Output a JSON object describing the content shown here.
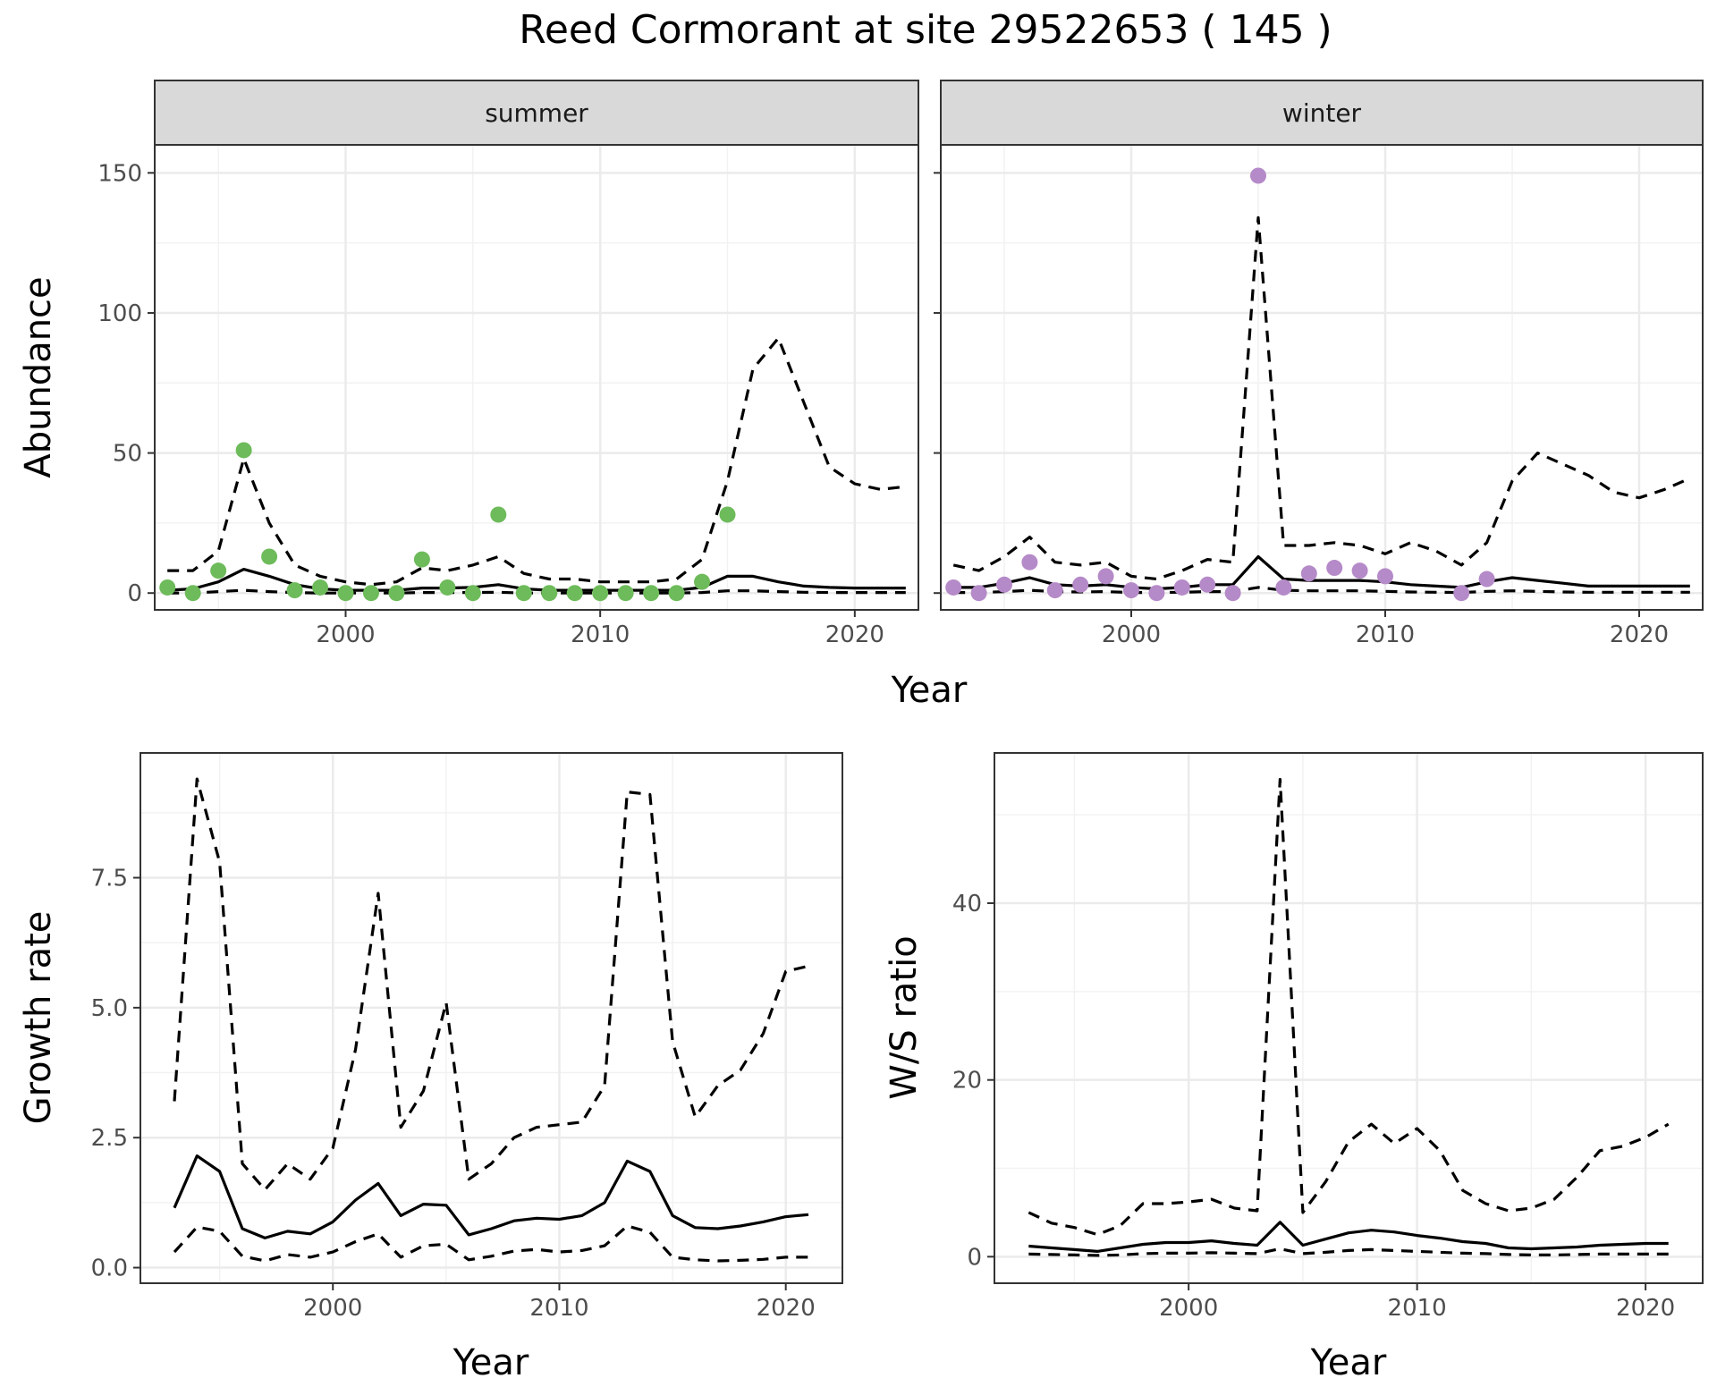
{
  "title": "Reed Cormorant at site 29522653 ( 145 )",
  "colors": {
    "summer": "#6dbb5a",
    "winter": "#b58ac8",
    "line": "#000000"
  },
  "chart_data": [
    {
      "type": "scatter",
      "panel": "summer",
      "strip": "summer",
      "xlabel": "Year",
      "ylabel": "Abundance",
      "xlim": [
        1992.5,
        2022.5
      ],
      "ylim": [
        -6,
        160
      ],
      "xticks": [
        2000,
        2010,
        2020
      ],
      "yticks": [
        0,
        50,
        100,
        150
      ],
      "grid": true,
      "points": {
        "x": [
          1993,
          1994,
          1995,
          1996,
          1997,
          1998,
          1999,
          2000,
          2001,
          2002,
          2003,
          2004,
          2005,
          2006,
          2007,
          2008,
          2009,
          2010,
          2011,
          2012,
          2013,
          2014,
          2015
        ],
        "y": [
          2,
          0,
          8,
          51,
          13,
          1,
          2,
          0,
          0,
          0,
          12,
          2,
          0,
          28,
          0,
          0,
          0,
          0,
          0,
          0,
          0,
          4,
          28
        ]
      },
      "series": [
        {
          "role": "mean",
          "x": [
            1993,
            1994,
            1995,
            1996,
            1997,
            1998,
            1999,
            2000,
            2001,
            2002,
            2003,
            2004,
            2005,
            2006,
            2007,
            2008,
            2009,
            2010,
            2011,
            2012,
            2013,
            2014,
            2015,
            2016,
            2017,
            2018,
            2019,
            2020,
            2021,
            2022
          ],
          "y": [
            1,
            1.5,
            4,
            8.5,
            6,
            3,
            1.5,
            1,
            1,
            1,
            1.8,
            1.8,
            2,
            3,
            1.5,
            1,
            1,
            1,
            1,
            1,
            1,
            2,
            6,
            6,
            4,
            2.5,
            2,
            1.8,
            1.8,
            1.8
          ]
        },
        {
          "role": "upper",
          "x": [
            1993,
            1994,
            1995,
            1996,
            1997,
            1998,
            1999,
            2000,
            2001,
            2002,
            2003,
            2004,
            2005,
            2006,
            2007,
            2008,
            2009,
            2010,
            2011,
            2012,
            2013,
            2014,
            2015,
            2016,
            2017,
            2018,
            2019,
            2020,
            2021,
            2022
          ],
          "y": [
            8,
            8,
            15,
            48,
            25,
            10,
            6,
            4,
            3,
            4,
            9,
            8,
            10,
            13,
            7,
            5,
            5,
            4,
            4,
            4,
            5,
            12,
            40,
            80,
            91,
            68,
            45,
            39,
            37,
            38
          ]
        },
        {
          "role": "lower",
          "x": [
            1993,
            1994,
            1995,
            1996,
            1997,
            1998,
            1999,
            2000,
            2001,
            2002,
            2003,
            2004,
            2005,
            2006,
            2007,
            2008,
            2009,
            2010,
            2011,
            2012,
            2013,
            2014,
            2015,
            2016,
            2017,
            2018,
            2019,
            2020,
            2021,
            2022
          ],
          "y": [
            0,
            0,
            0.5,
            1,
            0.5,
            0.2,
            0,
            0,
            0,
            0,
            0.2,
            0.2,
            0.2,
            0.3,
            0,
            0,
            0,
            0,
            0,
            0,
            0,
            0.2,
            0.8,
            0.8,
            0.5,
            0.3,
            0.2,
            0.2,
            0.2,
            0.2
          ]
        }
      ]
    },
    {
      "type": "scatter",
      "panel": "winter",
      "strip": "winter",
      "xlabel": "Year",
      "ylabel": "",
      "xlim": [
        1992.5,
        2022.5
      ],
      "ylim": [
        -6,
        160
      ],
      "xticks": [
        2000,
        2010,
        2020
      ],
      "yticks": [
        0,
        50,
        100,
        150
      ],
      "grid": true,
      "points": {
        "x": [
          1993,
          1994,
          1995,
          1996,
          1997,
          1998,
          1999,
          2000,
          2001,
          2002,
          2003,
          2004,
          2005,
          2006,
          2007,
          2008,
          2009,
          2010,
          2013,
          2014
        ],
        "y": [
          2,
          0,
          3,
          11,
          1,
          3,
          6,
          1,
          0,
          2,
          3,
          0,
          149,
          2,
          7,
          9,
          8,
          6,
          0,
          5
        ]
      },
      "series": [
        {
          "role": "mean",
          "x": [
            1993,
            1994,
            1995,
            1996,
            1997,
            1998,
            1999,
            2000,
            2001,
            2002,
            2003,
            2004,
            2005,
            2006,
            2007,
            2008,
            2009,
            2010,
            2011,
            2012,
            2013,
            2014,
            2015,
            2016,
            2017,
            2018,
            2019,
            2020,
            2021,
            2022
          ],
          "y": [
            2,
            2,
            3.5,
            5.5,
            3,
            2.5,
            3,
            2,
            1.5,
            2,
            3,
            3,
            13,
            5,
            4.5,
            4.5,
            4.5,
            4,
            3,
            2.5,
            2,
            4,
            5.5,
            4.5,
            3.5,
            2.5,
            2.5,
            2.5,
            2.5,
            2.5
          ]
        },
        {
          "role": "upper",
          "x": [
            1993,
            1994,
            1995,
            1996,
            1997,
            1998,
            1999,
            2000,
            2001,
            2002,
            2003,
            2004,
            2005,
            2006,
            2007,
            2008,
            2009,
            2010,
            2011,
            2012,
            2013,
            2014,
            2015,
            2016,
            2017,
            2018,
            2019,
            2020,
            2021,
            2022
          ],
          "y": [
            10,
            8,
            13,
            20,
            11,
            10,
            11,
            6,
            5,
            8,
            12,
            11,
            134,
            17,
            17,
            18,
            17,
            14,
            18,
            15,
            10,
            18,
            40,
            50,
            46,
            42,
            36,
            34,
            37,
            41
          ]
        },
        {
          "role": "lower",
          "x": [
            1993,
            1994,
            1995,
            1996,
            1997,
            1998,
            1999,
            2000,
            2001,
            2002,
            2003,
            2004,
            2005,
            2006,
            2007,
            2008,
            2009,
            2010,
            2011,
            2012,
            2013,
            2014,
            2015,
            2016,
            2017,
            2018,
            2019,
            2020,
            2021,
            2022
          ],
          "y": [
            0.2,
            0.2,
            0.5,
            1,
            0.5,
            0.4,
            0.5,
            0.2,
            0.2,
            0.3,
            0.5,
            0.5,
            2,
            1,
            0.8,
            0.8,
            0.8,
            0.6,
            0.4,
            0.3,
            0.2,
            0.6,
            0.8,
            0.6,
            0.4,
            0.3,
            0.3,
            0.3,
            0.3,
            0.3
          ]
        }
      ]
    },
    {
      "type": "line",
      "panel": "growth",
      "xlabel": "Year",
      "ylabel": "Growth rate",
      "xlim": [
        1991.5,
        2022.5
      ],
      "ylim": [
        -0.3,
        9.9
      ],
      "xticks": [
        2000,
        2010,
        2020
      ],
      "yticks": [
        0.0,
        2.5,
        5.0,
        7.5
      ],
      "ytick_labels": [
        "0.0",
        "2.5",
        "5.0",
        "7.5"
      ],
      "grid": true,
      "series": [
        {
          "role": "mean",
          "x": [
            1993,
            1994,
            1995,
            1996,
            1997,
            1998,
            1999,
            2000,
            2001,
            2002,
            2003,
            2004,
            2005,
            2006,
            2007,
            2008,
            2009,
            2010,
            2011,
            2012,
            2013,
            2014,
            2015,
            2016,
            2017,
            2018,
            2019,
            2020,
            2021
          ],
          "y": [
            1.15,
            2.15,
            1.85,
            0.75,
            0.57,
            0.7,
            0.65,
            0.88,
            1.3,
            1.62,
            1.0,
            1.22,
            1.2,
            0.63,
            0.75,
            0.9,
            0.95,
            0.93,
            1.0,
            1.25,
            2.05,
            1.85,
            1.0,
            0.77,
            0.75,
            0.8,
            0.88,
            0.98,
            1.02
          ]
        },
        {
          "role": "upper",
          "x": [
            1993,
            1994,
            1995,
            1996,
            1997,
            1998,
            1999,
            2000,
            2001,
            2002,
            2003,
            2004,
            2005,
            2006,
            2007,
            2008,
            2009,
            2010,
            2011,
            2012,
            2013,
            2014,
            2015,
            2016,
            2017,
            2018,
            2019,
            2020,
            2021
          ],
          "y": [
            3.2,
            9.4,
            7.8,
            2.0,
            1.5,
            2.0,
            1.7,
            2.3,
            4.2,
            7.2,
            2.7,
            3.4,
            5.1,
            1.7,
            2.0,
            2.5,
            2.7,
            2.75,
            2.8,
            3.5,
            9.15,
            9.1,
            4.35,
            2.9,
            3.5,
            3.8,
            4.5,
            5.7,
            5.8
          ]
        },
        {
          "role": "lower",
          "x": [
            1993,
            1994,
            1995,
            1996,
            1997,
            1998,
            1999,
            2000,
            2001,
            2002,
            2003,
            2004,
            2005,
            2006,
            2007,
            2008,
            2009,
            2010,
            2011,
            2012,
            2013,
            2014,
            2015,
            2016,
            2017,
            2018,
            2019,
            2020,
            2021
          ],
          "y": [
            0.3,
            0.78,
            0.7,
            0.22,
            0.13,
            0.25,
            0.2,
            0.3,
            0.5,
            0.65,
            0.2,
            0.42,
            0.45,
            0.15,
            0.22,
            0.32,
            0.35,
            0.3,
            0.33,
            0.42,
            0.8,
            0.68,
            0.2,
            0.15,
            0.13,
            0.14,
            0.16,
            0.2,
            0.2
          ]
        }
      ]
    },
    {
      "type": "line",
      "panel": "ws-ratio",
      "xlabel": "Year",
      "ylabel": "W/S ratio",
      "xlim": [
        1991.5,
        2022.5
      ],
      "ylim": [
        -3,
        57
      ],
      "xticks": [
        2000,
        2010,
        2020
      ],
      "yticks": [
        0,
        20,
        40
      ],
      "grid": true,
      "series": [
        {
          "role": "mean",
          "x": [
            1993,
            1994,
            1995,
            1996,
            1997,
            1998,
            1999,
            2000,
            2001,
            2002,
            2003,
            2004,
            2005,
            2006,
            2007,
            2008,
            2009,
            2010,
            2011,
            2012,
            2013,
            2014,
            2015,
            2016,
            2017,
            2018,
            2019,
            2020,
            2021
          ],
          "y": [
            1.2,
            1.0,
            0.8,
            0.6,
            1.0,
            1.4,
            1.6,
            1.6,
            1.8,
            1.5,
            1.3,
            3.9,
            1.3,
            2.0,
            2.7,
            3.0,
            2.8,
            2.4,
            2.1,
            1.7,
            1.5,
            1.0,
            0.9,
            1.0,
            1.1,
            1.3,
            1.4,
            1.5,
            1.5
          ]
        },
        {
          "role": "upper",
          "x": [
            1993,
            1994,
            1995,
            1996,
            1997,
            1998,
            1999,
            2000,
            2001,
            2002,
            2003,
            2004,
            2005,
            2006,
            2007,
            2008,
            2009,
            2010,
            2011,
            2012,
            2013,
            2014,
            2015,
            2016,
            2017,
            2018,
            2019,
            2020,
            2021
          ],
          "y": [
            5,
            3.8,
            3.3,
            2.5,
            3.5,
            6.0,
            6.0,
            6.2,
            6.5,
            5.5,
            5.2,
            54,
            5.0,
            8.5,
            13,
            15,
            12.8,
            14.5,
            12,
            7.5,
            6.0,
            5.2,
            5.5,
            6.5,
            9,
            12,
            12.5,
            13.5,
            15
          ]
        },
        {
          "role": "lower",
          "x": [
            1993,
            1994,
            1995,
            1996,
            1997,
            1998,
            1999,
            2000,
            2001,
            2002,
            2003,
            2004,
            2005,
            2006,
            2007,
            2008,
            2009,
            2010,
            2011,
            2012,
            2013,
            2014,
            2015,
            2016,
            2017,
            2018,
            2019,
            2020,
            2021
          ],
          "y": [
            0.3,
            0.25,
            0.2,
            0.15,
            0.2,
            0.35,
            0.4,
            0.4,
            0.45,
            0.4,
            0.35,
            0.9,
            0.35,
            0.5,
            0.7,
            0.8,
            0.7,
            0.6,
            0.5,
            0.4,
            0.35,
            0.25,
            0.2,
            0.2,
            0.25,
            0.3,
            0.3,
            0.3,
            0.3
          ]
        }
      ]
    }
  ]
}
